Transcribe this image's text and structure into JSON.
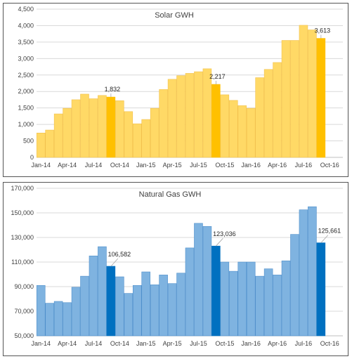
{
  "chart_data": [
    {
      "type": "bar",
      "title": "Solar GWH",
      "categories": [
        "Jan-14",
        "Feb-14",
        "Mar-14",
        "Apr-14",
        "May-14",
        "Jun-14",
        "Jul-14",
        "Aug-14",
        "Sep-14",
        "Oct-14",
        "Nov-14",
        "Dec-14",
        "Jan-15",
        "Feb-15",
        "Mar-15",
        "Apr-15",
        "May-15",
        "Jun-15",
        "Jul-15",
        "Aug-15",
        "Sep-15",
        "Oct-15",
        "Nov-15",
        "Dec-15",
        "Jan-16",
        "Feb-16",
        "Mar-16",
        "Apr-16",
        "May-16",
        "Jun-16",
        "Jul-16",
        "Aug-16",
        "Sep-16",
        "Oct-16",
        "Nov-16"
      ],
      "values": [
        740,
        830,
        1320,
        1490,
        1750,
        1920,
        1780,
        1880,
        1832,
        1720,
        1390,
        1020,
        1150,
        1490,
        2060,
        2370,
        2480,
        2550,
        2600,
        2690,
        2217,
        1900,
        1730,
        1570,
        1490,
        2420,
        2670,
        2880,
        3550,
        3550,
        4010,
        3870,
        3613,
        null,
        null
      ],
      "highlight_indices": [
        8,
        20,
        32
      ],
      "data_labels": {
        "8": "1,832",
        "20": "2,217",
        "32": "3,613"
      },
      "x_tick_labels": [
        "Jan-14",
        "Apr-14",
        "Jul-14",
        "Oct-14",
        "Jan-15",
        "Apr-15",
        "Jul-15",
        "Oct-15",
        "Jan-16",
        "Apr-16",
        "Jul-16",
        "Oct-16"
      ],
      "y_tick_labels": [
        "0",
        "500",
        "1,000",
        "1,500",
        "2,000",
        "2,500",
        "3,000",
        "3,500",
        "4,000",
        "4,500"
      ],
      "ylim": [
        0,
        4500
      ],
      "grid": true,
      "colors": {
        "bar": "#ffd966",
        "bar_edge": "#f2c14e",
        "highlight": "#ffc000",
        "grid": "#d9d9d9"
      }
    },
    {
      "type": "bar",
      "title": "Natural Gas GWH",
      "categories": [
        "Jan-14",
        "Feb-14",
        "Mar-14",
        "Apr-14",
        "May-14",
        "Jun-14",
        "Jul-14",
        "Aug-14",
        "Sep-14",
        "Oct-14",
        "Nov-14",
        "Dec-14",
        "Jan-15",
        "Feb-15",
        "Mar-15",
        "Apr-15",
        "May-15",
        "Jun-15",
        "Jul-15",
        "Aug-15",
        "Sep-15",
        "Oct-15",
        "Nov-15",
        "Dec-15",
        "Jan-16",
        "Feb-16",
        "Mar-16",
        "Apr-16",
        "May-16",
        "Jun-16",
        "Jul-16",
        "Aug-16",
        "Sep-16",
        "Oct-16",
        "Nov-16"
      ],
      "values": [
        91000,
        76500,
        78000,
        77000,
        89500,
        98500,
        115000,
        122500,
        106582,
        98000,
        84500,
        91000,
        102000,
        91500,
        99500,
        92500,
        101000,
        121500,
        141500,
        139000,
        123036,
        110000,
        102500,
        110000,
        110000,
        98500,
        104500,
        99500,
        111000,
        132500,
        152500,
        155000,
        125661,
        null,
        null
      ],
      "highlight_indices": [
        8,
        20,
        32
      ],
      "data_labels": {
        "8": "106,582",
        "20": "123,036",
        "32": "125,661"
      },
      "x_tick_labels": [
        "Jan-14",
        "Apr-14",
        "Jul-14",
        "Oct-14",
        "Jan-15",
        "Apr-15",
        "Jul-15",
        "Oct-15",
        "Jan-16",
        "Apr-16",
        "Jul-16",
        "Oct-16"
      ],
      "y_tick_labels": [
        "50,000",
        "70,000",
        "90,000",
        "110,000",
        "130,000",
        "150,000",
        "170,000"
      ],
      "ylim": [
        50000,
        170000
      ],
      "grid": true,
      "colors": {
        "bar": "#7fb3e0",
        "bar_edge": "#4f8fcb",
        "highlight": "#0070c0",
        "grid": "#d9d9d9"
      }
    }
  ]
}
